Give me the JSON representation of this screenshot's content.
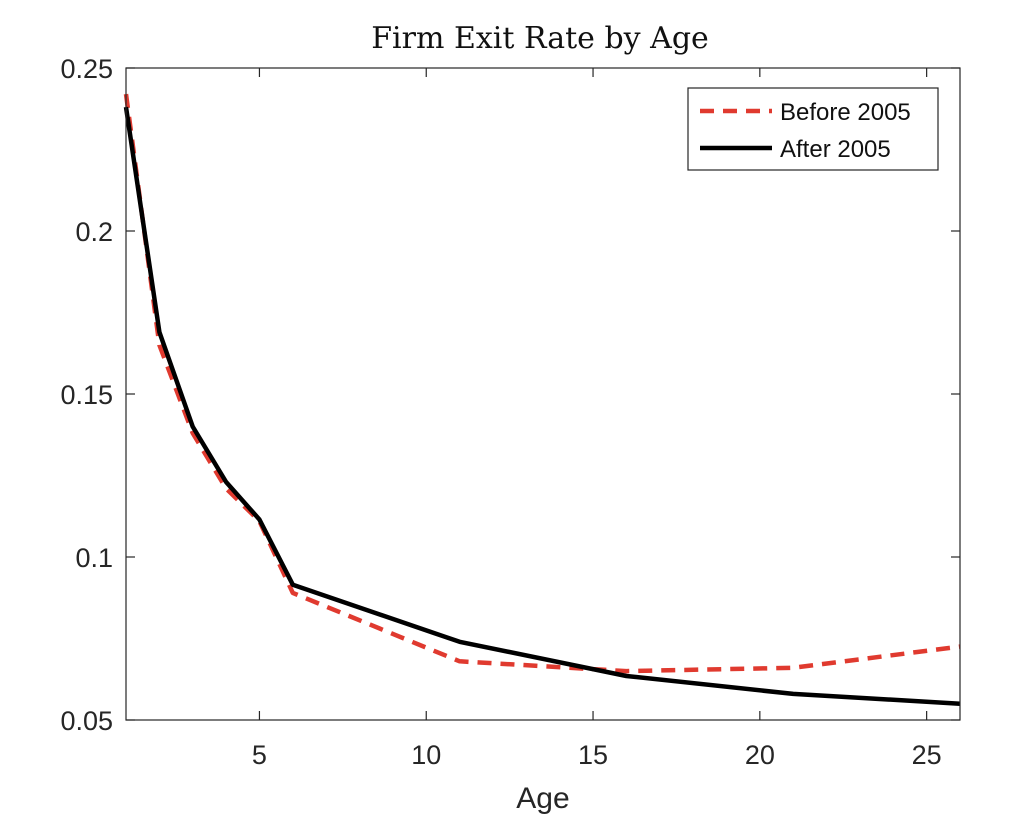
{
  "chart_data": {
    "type": "line",
    "title": "Firm Exit Rate by Age",
    "xlabel": "Age",
    "ylabel": "",
    "xlim": [
      1,
      26
    ],
    "ylim": [
      0.05,
      0.25
    ],
    "xticks": [
      5,
      10,
      15,
      20,
      25
    ],
    "yticks": [
      0.05,
      0.1,
      0.15,
      0.2,
      0.25
    ],
    "ytick_labels": [
      "0.05",
      "0.1",
      "0.15",
      "0.2",
      "0.25"
    ],
    "grid": false,
    "legend_position": "top-right",
    "series": [
      {
        "name": "Before 2005",
        "color": "#e03a2f",
        "style": "dashed",
        "x": [
          1,
          2,
          3,
          4,
          5,
          6,
          11,
          16,
          21,
          26
        ],
        "y": [
          0.242,
          0.165,
          0.138,
          0.121,
          0.111,
          0.089,
          0.068,
          0.065,
          0.066,
          0.0725
        ]
      },
      {
        "name": "After 2005",
        "color": "#000000",
        "style": "solid",
        "x": [
          1,
          2,
          3,
          4,
          5,
          6,
          11,
          16,
          21,
          26
        ],
        "y": [
          0.238,
          0.169,
          0.14,
          0.123,
          0.1115,
          0.0915,
          0.074,
          0.0635,
          0.058,
          0.055
        ]
      }
    ]
  }
}
